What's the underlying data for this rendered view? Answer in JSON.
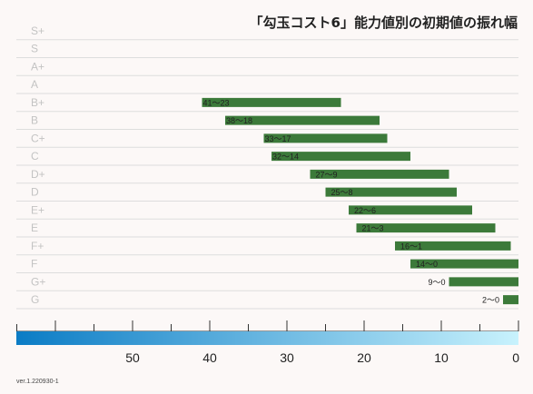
{
  "chart_data": {
    "type": "bar",
    "title": "「勾玉コスト6」能力値別の初期値の振れ幅",
    "categories": [
      "S+",
      "S",
      "A+",
      "A",
      "B+",
      "B",
      "C+",
      "C",
      "D+",
      "D",
      "E+",
      "E",
      "F+",
      "F",
      "G+",
      "G"
    ],
    "ranges": [
      null,
      null,
      null,
      null,
      [
        41,
        23
      ],
      [
        38,
        18
      ],
      [
        33,
        17
      ],
      [
        32,
        14
      ],
      [
        27,
        9
      ],
      [
        25,
        8
      ],
      [
        22,
        6
      ],
      [
        21,
        3
      ],
      [
        16,
        1
      ],
      [
        14,
        0
      ],
      [
        9,
        0
      ],
      [
        2,
        0
      ]
    ],
    "labels": [
      "",
      "",
      "",
      "",
      "41〜23",
      "38〜18",
      "33〜17",
      "32〜14",
      "27〜9",
      "25〜8",
      "22〜6",
      "21〜3",
      "16〜1",
      "14〜0",
      "9〜0",
      "2〜0"
    ],
    "x_axis": {
      "reversed": true,
      "xlim": [
        65,
        0
      ],
      "tick_labels": [
        "50",
        "40",
        "30",
        "20",
        "10",
        "0"
      ],
      "tick_values": [
        50,
        40,
        30,
        20,
        10,
        0
      ],
      "minor_tick_step": 5
    },
    "colors": {
      "bar": "#3c7a3a",
      "gradient_start": "#0b7cc5",
      "gradient_end": "#c8f2fd",
      "rank_label": "#c3c3c3",
      "background": "#fcf8f7"
    },
    "grid": true
  },
  "footer": {
    "version": "ver.1.220930-1"
  }
}
